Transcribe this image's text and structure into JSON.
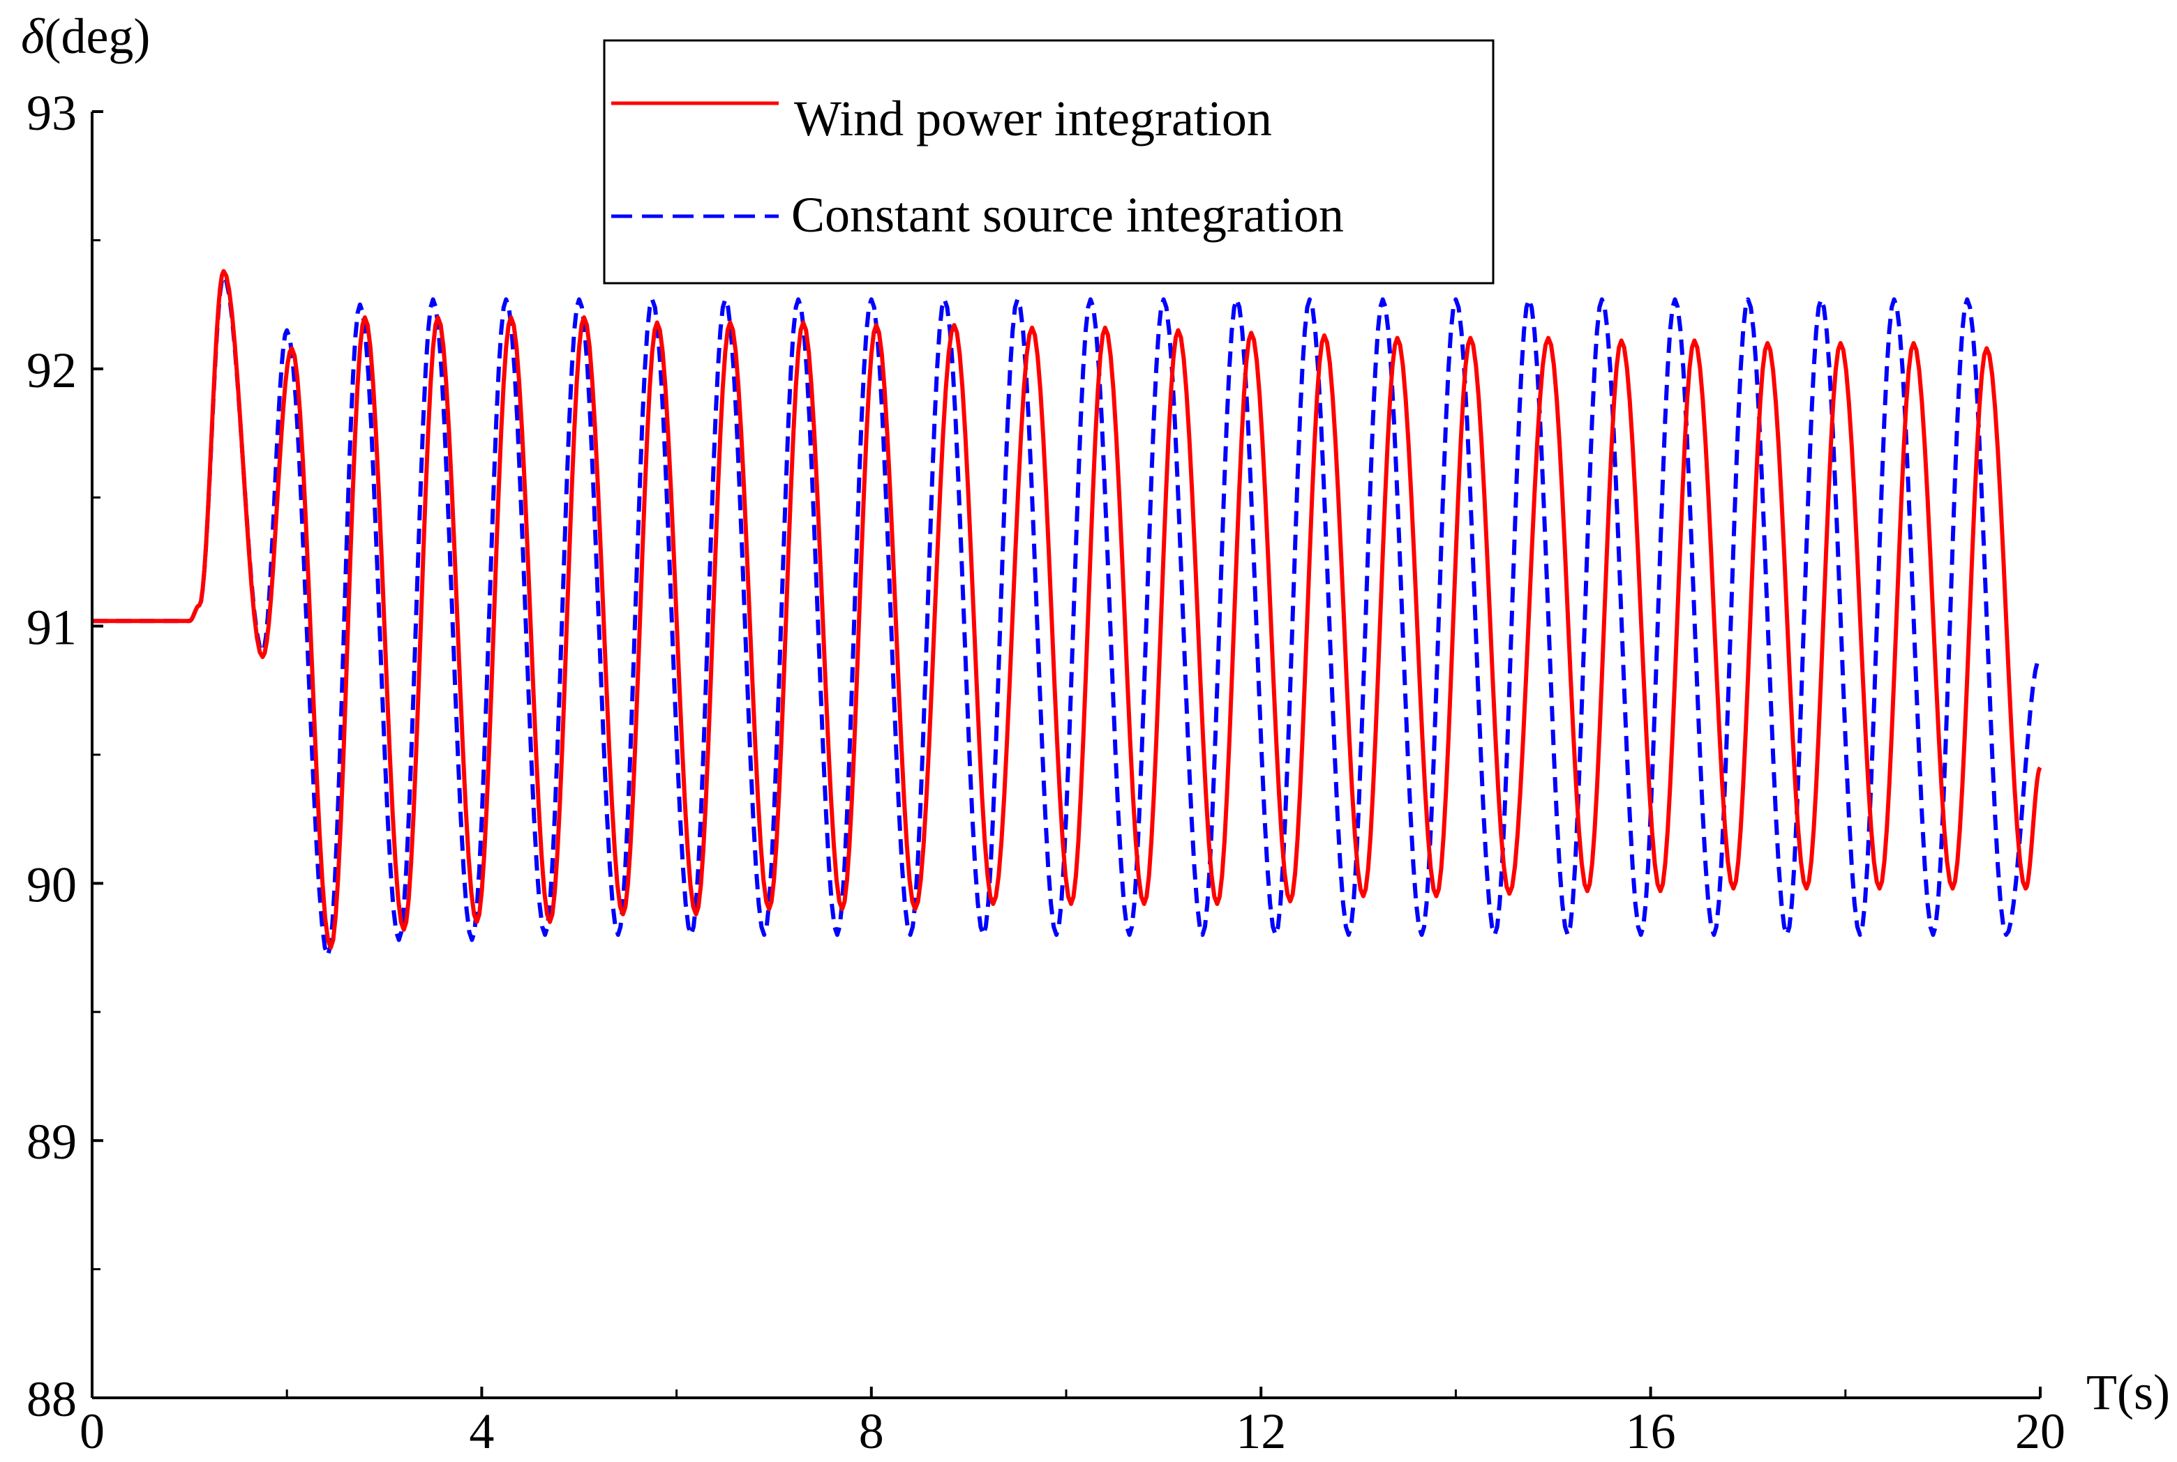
{
  "chart_data": {
    "type": "line",
    "xlabel": "T(s)",
    "ylabel": "δ(deg)",
    "ylabel_symbol": "δ",
    "ylabel_unit": "(deg)",
    "xlim": [
      0,
      20
    ],
    "ylim": [
      88,
      93
    ],
    "x_ticks": [
      0,
      4,
      8,
      12,
      16,
      20
    ],
    "x_minor_ticks": [
      2,
      6,
      10,
      14,
      18
    ],
    "y_ticks": [
      88,
      89,
      90,
      91,
      92,
      93
    ],
    "y_minor_ticks": [
      88.5,
      89.5,
      90.5,
      91.5,
      92.5
    ],
    "grid": false,
    "legend": {
      "placement": "top-center",
      "framed": true
    },
    "series": [
      {
        "name": "Wind power integration",
        "color": "#ff0000",
        "dash": "solid",
        "x": [
          0,
          1.0,
          1.1,
          1.35,
          1.75,
          2.05,
          2.45,
          2.8,
          3.2,
          3.55,
          3.95,
          4.3,
          4.7,
          5.05,
          5.45,
          5.8,
          6.2,
          6.55,
          6.95,
          7.3,
          7.7,
          8.05,
          8.45,
          8.85,
          9.25,
          9.65,
          10.05,
          10.4,
          10.8,
          11.15,
          11.55,
          11.9,
          12.3,
          12.65,
          13.05,
          13.4,
          13.8,
          14.15,
          14.55,
          14.95,
          15.35,
          15.7,
          16.1,
          16.45,
          16.85,
          17.2,
          17.6,
          17.95,
          18.35,
          18.7,
          19.1,
          19.45,
          19.85,
          20.0
        ],
        "y": [
          91.02,
          91.02,
          91.08,
          92.38,
          90.88,
          92.08,
          89.75,
          92.2,
          89.82,
          92.2,
          89.85,
          92.2,
          89.85,
          92.2,
          89.88,
          92.18,
          89.88,
          92.18,
          89.9,
          92.18,
          89.9,
          92.17,
          89.9,
          92.17,
          89.92,
          92.16,
          89.92,
          92.16,
          89.92,
          92.15,
          89.92,
          92.14,
          89.93,
          92.13,
          89.95,
          92.12,
          89.95,
          92.12,
          89.96,
          92.12,
          89.97,
          92.11,
          89.97,
          92.11,
          89.98,
          92.1,
          89.98,
          92.1,
          89.98,
          92.1,
          89.98,
          92.08,
          89.98,
          90.45
        ]
      },
      {
        "name": "Constant source integration",
        "color": "#0000ff",
        "dash": "dashed",
        "x": [
          0,
          1.0,
          1.1,
          1.35,
          1.75,
          2.0,
          2.42,
          2.75,
          3.15,
          3.5,
          3.9,
          4.25,
          4.65,
          5.0,
          5.4,
          5.75,
          6.15,
          6.5,
          6.9,
          7.25,
          7.65,
          8.0,
          8.4,
          8.75,
          9.15,
          9.5,
          9.9,
          10.25,
          10.65,
          11.0,
          11.4,
          11.75,
          12.15,
          12.5,
          12.9,
          13.25,
          13.65,
          14.0,
          14.4,
          14.75,
          15.15,
          15.5,
          15.9,
          16.25,
          16.65,
          17.0,
          17.4,
          17.75,
          18.15,
          18.5,
          18.9,
          19.25,
          19.65,
          20.0
        ],
        "y": [
          91.02,
          91.02,
          91.08,
          92.36,
          90.9,
          92.15,
          89.72,
          92.25,
          89.78,
          92.27,
          89.78,
          92.27,
          89.8,
          92.27,
          89.8,
          92.27,
          89.8,
          92.27,
          89.8,
          92.27,
          89.8,
          92.27,
          89.8,
          92.27,
          89.8,
          92.27,
          89.8,
          92.27,
          89.8,
          92.27,
          89.8,
          92.27,
          89.8,
          92.27,
          89.8,
          92.27,
          89.8,
          92.27,
          89.8,
          92.27,
          89.8,
          92.27,
          89.8,
          92.27,
          89.8,
          92.27,
          89.8,
          92.27,
          89.8,
          92.27,
          89.8,
          92.27,
          89.8,
          90.88
        ]
      }
    ]
  }
}
